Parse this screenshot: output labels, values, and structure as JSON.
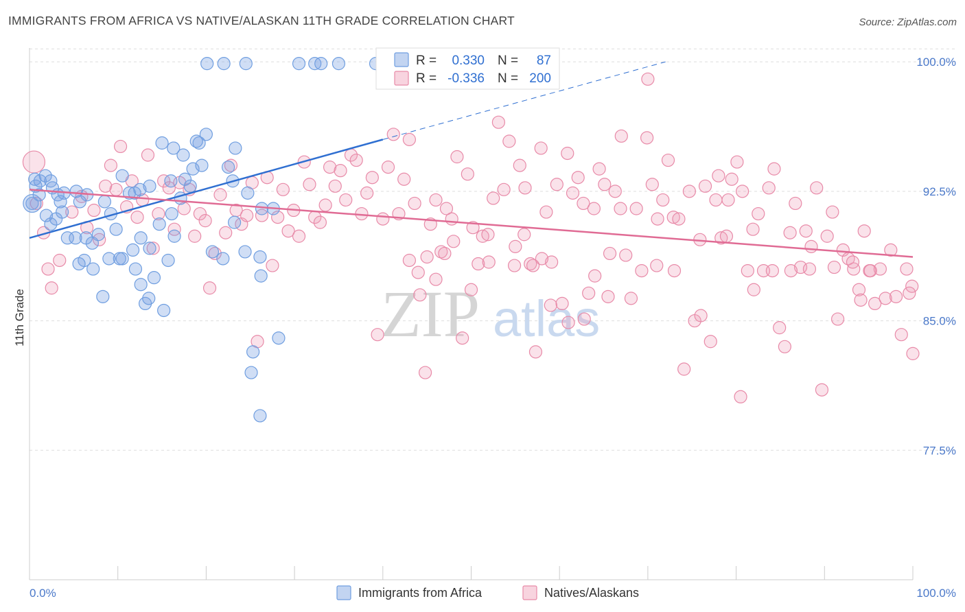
{
  "header": {
    "title": "IMMIGRANTS FROM AFRICA VS NATIVE/ALASKAN 11TH GRADE CORRELATION CHART",
    "source": "Source: ZipAtlas.com"
  },
  "watermark": {
    "zip": "ZIP",
    "atlas": "atlas"
  },
  "colors": {
    "blue": "#6f9ee0",
    "blue_fill": "rgba(120,160,225,0.35)",
    "blue_line": "#2f6fd1",
    "pink": "#e88aa8",
    "pink_fill": "rgba(240,160,185,0.30)",
    "pink_line": "#e06b94",
    "grid": "#dddddd",
    "tick_label": "#4a78c9"
  },
  "legend": {
    "r_label": "R =",
    "n_label": "N =",
    "series": [
      {
        "r": "0.330",
        "n": "87"
      },
      {
        "r": "-0.336",
        "n": "200"
      }
    ]
  },
  "chart_data": {
    "type": "scatter",
    "title": "IMMIGRANTS FROM AFRICA VS NATIVE/ALASKAN 11TH GRADE CORRELATION CHART",
    "xlabel": "",
    "ylabel": "11th Grade",
    "xlim": [
      0,
      100
    ],
    "ylim": [
      70,
      100.8
    ],
    "x_tick_labels": [
      "0.0%",
      "100.0%"
    ],
    "y_ticks": [
      77.5,
      85.0,
      92.5,
      100.0
    ],
    "y_tick_labels": [
      "77.5%",
      "85.0%",
      "92.5%",
      "100.0%"
    ],
    "grid": true,
    "legend_position": "top-center",
    "series": [
      {
        "name": "Immigrants from Africa",
        "color": "#6f9ee0",
        "trend": {
          "x0": 0,
          "y0": 89.8,
          "x1": 40.0,
          "y1": 95.5,
          "dashed_to_x": 72.0,
          "dashed_to_y": 100.0
        },
        "points": [
          [
            0.3,
            91.8
          ],
          [
            0.7,
            92.8
          ],
          [
            0.6,
            93.2
          ],
          [
            1.2,
            93.1
          ],
          [
            1.8,
            93.4
          ],
          [
            2.4,
            93.1
          ],
          [
            1.1,
            92.3
          ],
          [
            2.6,
            92.7
          ],
          [
            3.2,
            92.3
          ],
          [
            3.9,
            92.4
          ],
          [
            5.3,
            92.5
          ],
          [
            6.5,
            92.3
          ],
          [
            3.5,
            91.9
          ],
          [
            5.7,
            91.9
          ],
          [
            8.5,
            91.9
          ],
          [
            1.9,
            91.1
          ],
          [
            3.7,
            91.3
          ],
          [
            2.4,
            90.6
          ],
          [
            3.0,
            90.9
          ],
          [
            4.3,
            89.8
          ],
          [
            5.2,
            89.8
          ],
          [
            6.4,
            89.8
          ],
          [
            7.1,
            89.5
          ],
          [
            6.2,
            88.5
          ],
          [
            5.6,
            88.3
          ],
          [
            9.0,
            88.6
          ],
          [
            10.5,
            88.6
          ],
          [
            7.8,
            90.0
          ],
          [
            9.8,
            90.3
          ],
          [
            9.2,
            91.2
          ],
          [
            12.6,
            89.8
          ],
          [
            10.2,
            88.6
          ],
          [
            11.7,
            89.1
          ],
          [
            13.6,
            89.2
          ],
          [
            12.0,
            88.0
          ],
          [
            7.2,
            88.0
          ],
          [
            12.6,
            87.1
          ],
          [
            14.1,
            87.5
          ],
          [
            13.1,
            86.0
          ],
          [
            13.5,
            86.3
          ],
          [
            8.3,
            86.4
          ],
          [
            15.2,
            85.6
          ],
          [
            15.7,
            88.5
          ],
          [
            16.4,
            89.9
          ],
          [
            14.7,
            90.6
          ],
          [
            16.1,
            91.2
          ],
          [
            11.3,
            92.4
          ],
          [
            11.9,
            92.4
          ],
          [
            12.5,
            92.6
          ],
          [
            13.6,
            92.8
          ],
          [
            17.1,
            92.1
          ],
          [
            18.2,
            92.8
          ],
          [
            16.0,
            93.1
          ],
          [
            18.5,
            93.8
          ],
          [
            20.0,
            95.8
          ],
          [
            17.4,
            94.6
          ],
          [
            19.2,
            95.3
          ],
          [
            18.9,
            95.4
          ],
          [
            15.0,
            95.3
          ],
          [
            16.3,
            95.0
          ],
          [
            19.5,
            94.0
          ],
          [
            23.3,
            95.0
          ],
          [
            17.6,
            93.2
          ],
          [
            22.5,
            93.9
          ],
          [
            23.0,
            93.1
          ],
          [
            24.4,
            89.0
          ],
          [
            26.1,
            88.7
          ],
          [
            26.2,
            87.6
          ],
          [
            21.9,
            88.6
          ],
          [
            20.7,
            89.0
          ],
          [
            23.2,
            90.7
          ],
          [
            24.7,
            92.4
          ],
          [
            26.3,
            91.5
          ],
          [
            27.6,
            91.5
          ],
          [
            25.3,
            83.2
          ],
          [
            26.1,
            79.5
          ],
          [
            25.1,
            82.0
          ],
          [
            20.1,
            99.9
          ],
          [
            22.0,
            99.9
          ],
          [
            24.5,
            99.9
          ],
          [
            30.5,
            99.9
          ],
          [
            32.3,
            99.9
          ],
          [
            33.0,
            99.9
          ],
          [
            35.0,
            99.9
          ],
          [
            39.2,
            99.9
          ],
          [
            28.2,
            84.0
          ],
          [
            10.5,
            93.4
          ]
        ]
      },
      {
        "name": "Natives/Alaskans",
        "color": "#e88aa8",
        "trend": {
          "x0": 0,
          "y0": 92.6,
          "x1": 100,
          "y1": 88.7
        },
        "points": [
          [
            0.5,
            94.2
          ],
          [
            0.8,
            91.8
          ],
          [
            1.6,
            90.1
          ],
          [
            2.1,
            88.0
          ],
          [
            2.5,
            86.9
          ],
          [
            3.4,
            88.5
          ],
          [
            4.8,
            91.3
          ],
          [
            5.9,
            92.2
          ],
          [
            6.5,
            90.4
          ],
          [
            7.3,
            91.4
          ],
          [
            7.9,
            89.7
          ],
          [
            8.6,
            92.8
          ],
          [
            9.2,
            94.0
          ],
          [
            9.8,
            92.6
          ],
          [
            10.3,
            95.1
          ],
          [
            11.0,
            91.6
          ],
          [
            11.6,
            93.1
          ],
          [
            12.2,
            91.0
          ],
          [
            12.8,
            92.0
          ],
          [
            13.4,
            94.6
          ],
          [
            14.0,
            89.2
          ],
          [
            14.6,
            91.2
          ],
          [
            15.2,
            93.1
          ],
          [
            15.8,
            92.7
          ],
          [
            16.4,
            90.3
          ],
          [
            17.0,
            93.0
          ],
          [
            17.5,
            91.5
          ],
          [
            18.1,
            92.6
          ],
          [
            18.7,
            89.9
          ],
          [
            19.3,
            91.2
          ],
          [
            19.9,
            90.8
          ],
          [
            20.4,
            86.9
          ],
          [
            21.0,
            88.9
          ],
          [
            21.6,
            92.3
          ],
          [
            22.2,
            90.1
          ],
          [
            22.8,
            94.0
          ],
          [
            23.4,
            91.4
          ],
          [
            24.0,
            90.6
          ],
          [
            24.6,
            91.1
          ],
          [
            25.2,
            93.0
          ],
          [
            25.8,
            83.8
          ],
          [
            26.3,
            91.1
          ],
          [
            26.9,
            93.3
          ],
          [
            27.5,
            88.2
          ],
          [
            28.1,
            91.0
          ],
          [
            28.7,
            92.6
          ],
          [
            29.3,
            90.2
          ],
          [
            29.9,
            91.4
          ],
          [
            30.5,
            89.9
          ],
          [
            31.1,
            94.2
          ],
          [
            31.7,
            92.9
          ],
          [
            32.3,
            91.0
          ],
          [
            32.9,
            90.7
          ],
          [
            33.5,
            91.7
          ],
          [
            34.0,
            93.9
          ],
          [
            34.6,
            92.8
          ],
          [
            35.2,
            93.7
          ],
          [
            35.8,
            92.0
          ],
          [
            36.4,
            94.6
          ],
          [
            37.0,
            94.3
          ],
          [
            37.6,
            91.2
          ],
          [
            38.2,
            92.4
          ],
          [
            38.8,
            93.3
          ],
          [
            39.4,
            84.2
          ],
          [
            40.0,
            90.9
          ],
          [
            40.6,
            93.9
          ],
          [
            41.2,
            95.8
          ],
          [
            41.8,
            91.2
          ],
          [
            42.4,
            93.2
          ],
          [
            43.0,
            95.5
          ],
          [
            43.6,
            91.8
          ],
          [
            44.2,
            86.5
          ],
          [
            44.8,
            82.0
          ],
          [
            45.4,
            90.6
          ],
          [
            46.0,
            92.0
          ],
          [
            46.6,
            89.0
          ],
          [
            47.2,
            91.5
          ],
          [
            47.8,
            90.9
          ],
          [
            48.4,
            94.5
          ],
          [
            49.0,
            84.0
          ],
          [
            49.6,
            93.5
          ],
          [
            50.2,
            90.4
          ],
          [
            50.8,
            88.3
          ],
          [
            51.3,
            89.9
          ],
          [
            51.9,
            90.0
          ],
          [
            52.5,
            92.1
          ],
          [
            53.1,
            96.5
          ],
          [
            53.7,
            92.6
          ],
          [
            54.3,
            95.4
          ],
          [
            54.9,
            88.2
          ],
          [
            55.5,
            94.0
          ],
          [
            56.1,
            92.7
          ],
          [
            56.7,
            88.3
          ],
          [
            57.3,
            83.2
          ],
          [
            57.9,
            95.0
          ],
          [
            58.5,
            91.3
          ],
          [
            59.1,
            88.4
          ],
          [
            59.7,
            92.9
          ],
          [
            60.3,
            86.0
          ],
          [
            60.9,
            94.7
          ],
          [
            61.5,
            92.4
          ],
          [
            62.1,
            93.3
          ],
          [
            62.7,
            91.8
          ],
          [
            63.3,
            86.6
          ],
          [
            63.9,
            91.5
          ],
          [
            64.5,
            93.8
          ],
          [
            65.1,
            92.9
          ],
          [
            65.7,
            88.9
          ],
          [
            66.3,
            92.5
          ],
          [
            66.9,
            91.5
          ],
          [
            67.5,
            88.8
          ],
          [
            68.1,
            86.3
          ],
          [
            68.7,
            91.5
          ],
          [
            69.3,
            87.9
          ],
          [
            69.9,
            95.6
          ],
          [
            70.5,
            92.9
          ],
          [
            71.1,
            90.9
          ],
          [
            71.7,
            92.0
          ],
          [
            72.3,
            94.3
          ],
          [
            72.9,
            91.0
          ],
          [
            73.5,
            90.9
          ],
          [
            74.1,
            82.2
          ],
          [
            74.7,
            92.5
          ],
          [
            75.3,
            85.0
          ],
          [
            75.9,
            89.7
          ],
          [
            76.5,
            92.8
          ],
          [
            77.1,
            83.8
          ],
          [
            77.7,
            92.0
          ],
          [
            78.3,
            89.8
          ],
          [
            78.9,
            89.9
          ],
          [
            79.5,
            93.2
          ],
          [
            80.1,
            94.2
          ],
          [
            80.7,
            92.5
          ],
          [
            81.3,
            87.9
          ],
          [
            81.9,
            90.3
          ],
          [
            82.5,
            91.2
          ],
          [
            83.1,
            87.9
          ],
          [
            83.7,
            92.7
          ],
          [
            84.3,
            93.8
          ],
          [
            84.9,
            84.6
          ],
          [
            85.5,
            83.5
          ],
          [
            86.1,
            90.1
          ],
          [
            86.7,
            91.8
          ],
          [
            87.3,
            88.1
          ],
          [
            87.9,
            90.2
          ],
          [
            88.5,
            89.3
          ],
          [
            89.1,
            92.7
          ],
          [
            89.7,
            81.0
          ],
          [
            90.3,
            89.9
          ],
          [
            90.9,
            91.3
          ],
          [
            91.5,
            85.1
          ],
          [
            92.1,
            89.1
          ],
          [
            92.7,
            88.6
          ],
          [
            93.3,
            88.0
          ],
          [
            93.9,
            86.8
          ],
          [
            94.5,
            90.2
          ],
          [
            95.1,
            87.9
          ],
          [
            95.7,
            86.0
          ],
          [
            96.3,
            88.0
          ],
          [
            96.9,
            86.3
          ],
          [
            97.5,
            89.1
          ],
          [
            98.1,
            86.4
          ],
          [
            98.7,
            84.2
          ],
          [
            99.3,
            88.0
          ],
          [
            99.9,
            87.0
          ],
          [
            100.0,
            83.1
          ],
          [
            99.6,
            86.6
          ],
          [
            95.2,
            87.9
          ],
          [
            94.1,
            86.2
          ],
          [
            93.2,
            88.4
          ],
          [
            91.1,
            88.1
          ],
          [
            88.3,
            88.0
          ],
          [
            86.2,
            87.9
          ],
          [
            84.1,
            87.9
          ],
          [
            82.0,
            86.8
          ],
          [
            80.5,
            80.6
          ],
          [
            79.1,
            92.0
          ],
          [
            78.0,
            93.4
          ],
          [
            76.0,
            85.3
          ],
          [
            73.0,
            87.9
          ],
          [
            71.0,
            88.2
          ],
          [
            70.0,
            99.0
          ],
          [
            67.0,
            95.7
          ],
          [
            65.5,
            86.4
          ],
          [
            64.0,
            87.6
          ],
          [
            62.8,
            85.1
          ],
          [
            61.0,
            84.9
          ],
          [
            59.0,
            85.9
          ],
          [
            58.0,
            88.6
          ],
          [
            57.0,
            88.2
          ],
          [
            56.0,
            90.0
          ],
          [
            55.0,
            89.3
          ],
          [
            52.0,
            88.4
          ],
          [
            50.0,
            86.8
          ],
          [
            48.0,
            89.6
          ],
          [
            47.0,
            88.9
          ],
          [
            46.0,
            87.4
          ],
          [
            45.0,
            88.7
          ],
          [
            44.0,
            87.8
          ],
          [
            43.0,
            88.5
          ]
        ]
      }
    ]
  },
  "bottom_legend": {
    "items": [
      "Immigrants from Africa",
      "Natives/Alaskans"
    ]
  }
}
